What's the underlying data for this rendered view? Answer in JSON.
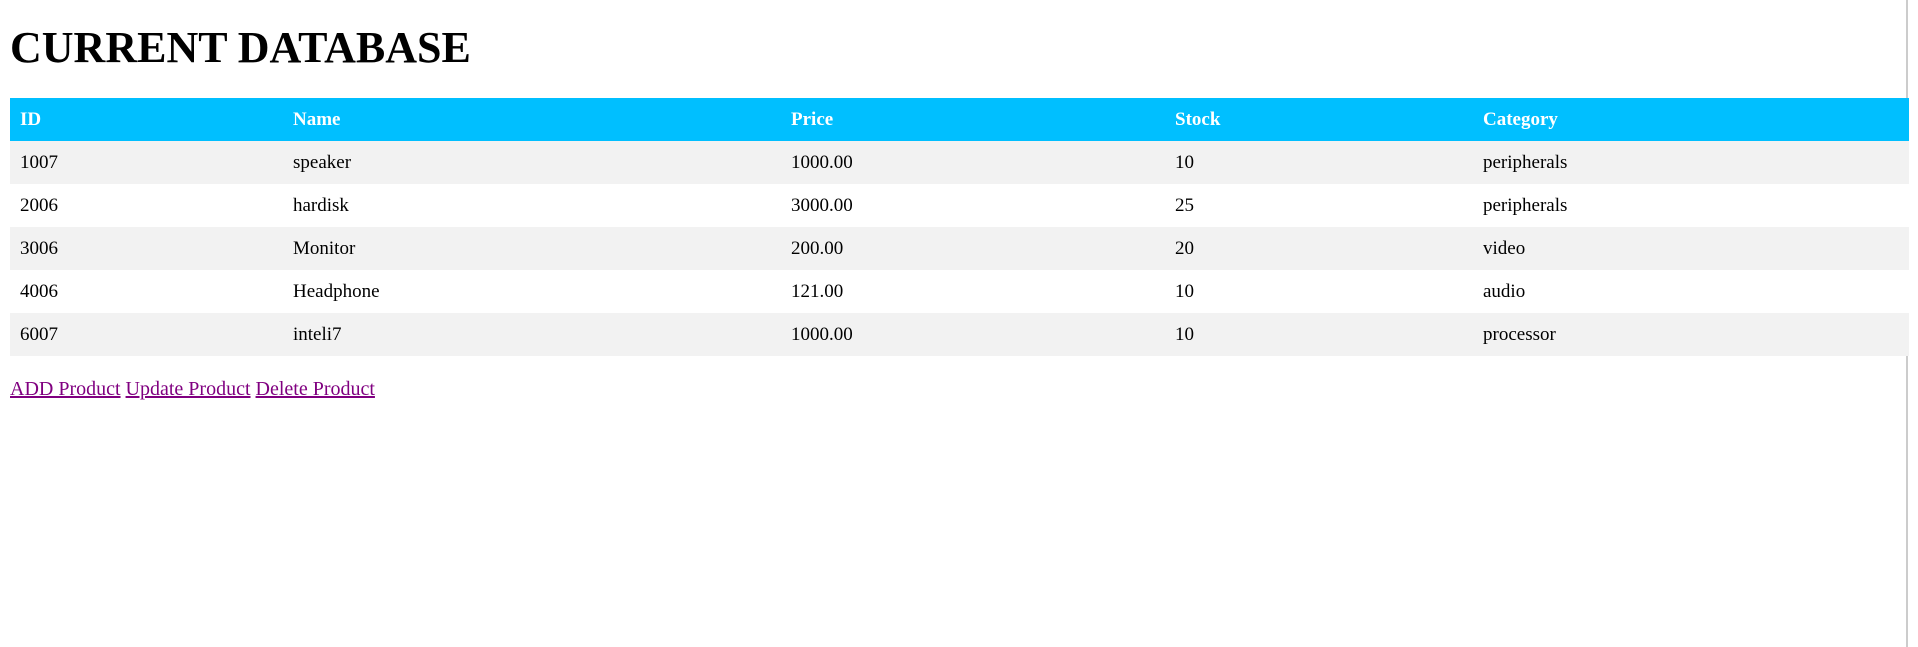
{
  "page_title": "CURRENT DATABASE",
  "table": {
    "headers": [
      "ID",
      "Name",
      "Price",
      "Stock",
      "Category"
    ],
    "rows": [
      [
        "1007",
        "speaker",
        "1000.00",
        "10",
        "peripherals"
      ],
      [
        "2006",
        "hardisk",
        "3000.00",
        "25",
        "peripherals"
      ],
      [
        "3006",
        "Monitor",
        "200.00",
        "20",
        "video"
      ],
      [
        "4006",
        "Headphone",
        "121.00",
        "10",
        "audio"
      ],
      [
        "6007",
        "inteli7",
        "1000.00",
        "10",
        "processor"
      ]
    ]
  },
  "links": {
    "add": "ADD Product",
    "update": "Update Product",
    "delete": "Delete Product"
  },
  "colors": {
    "header_bg": "#00bfff",
    "header_text": "#ffffff",
    "row_alt_bg": "#f2f2f2",
    "link_visited": "#800080"
  }
}
